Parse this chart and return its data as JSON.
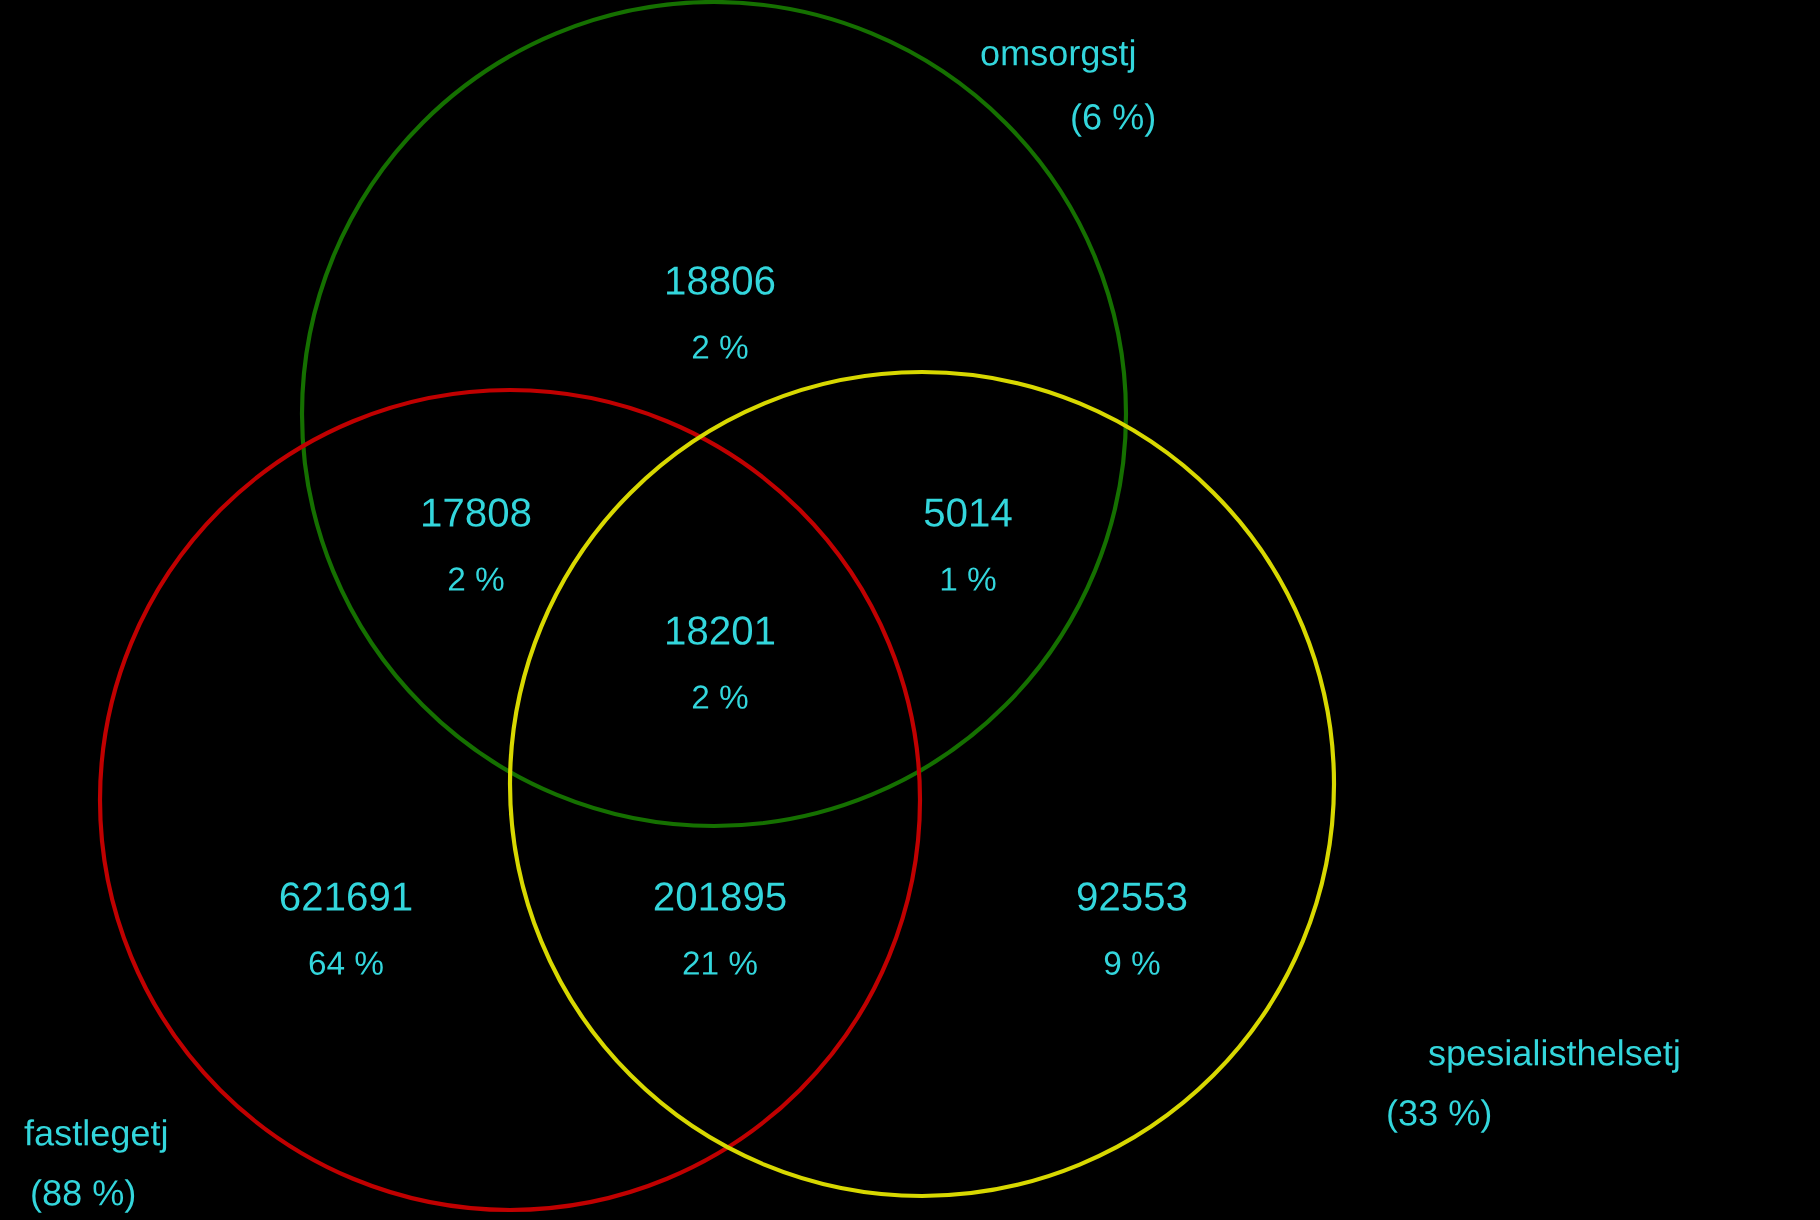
{
  "chart_data": {
    "type": "other",
    "categories": [
      null,
      null,
      null,
      null,
      null,
      null,
      null
    ],
    "values": [
      18806,
      17808,
      5014,
      18201,
      621691,
      201895,
      92553
    ],
    "data_labels": true,
    "annotations": [
      "2 %",
      "2 %",
      "1 %",
      "2 %",
      "64 %",
      "21 %",
      "9 %",
      "omsorgstj",
      "(6 %)",
      "fastlegetj",
      "(88 %)",
      "spesialisthelsetj",
      "(33 %)"
    ]
  }
}
